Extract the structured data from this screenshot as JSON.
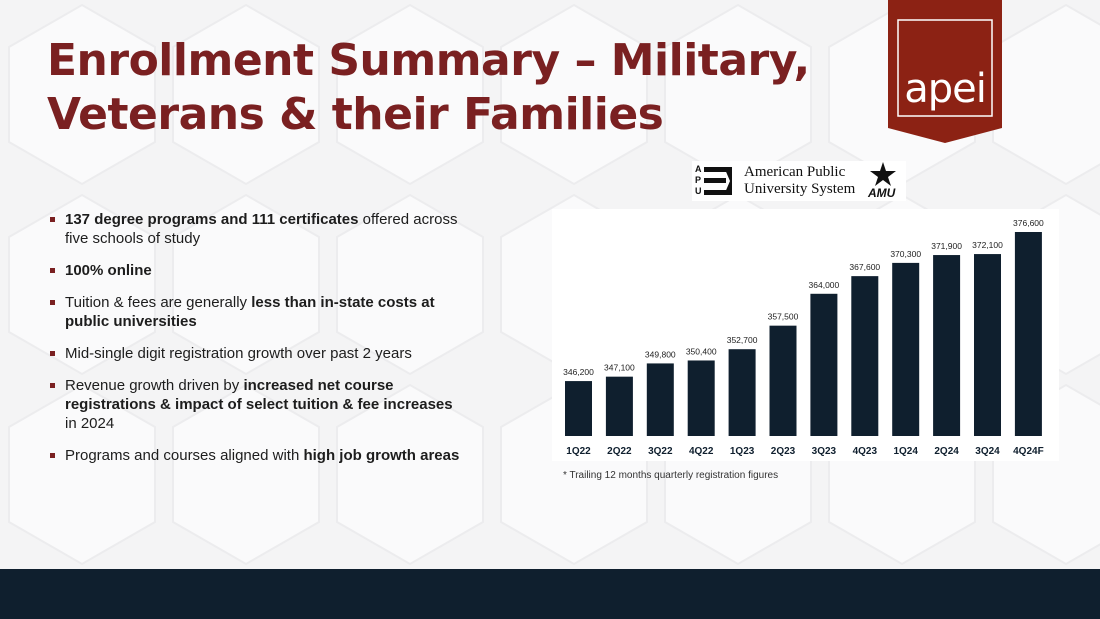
{
  "title": {
    "line1": "Enrollment Summary – Military,",
    "line2": "Veterans & their Families"
  },
  "logos": {
    "apei": "apei",
    "amu_letters": [
      "A",
      "P",
      "U"
    ],
    "amu_name_line1": "American Public",
    "amu_name_line2": "University System",
    "amu_abbr": "AMU"
  },
  "bullets": [
    {
      "bold": "137 degree programs and 111 certificates",
      "rest": " offered across five schools of study"
    },
    {
      "bold": "100% online",
      "rest": ""
    },
    {
      "pre": "Tuition & fees are generally ",
      "bold": "less than in-state costs at public universities"
    },
    {
      "pre": "Mid-single digit registration growth over past 2 years"
    },
    {
      "pre": "Revenue growth driven by ",
      "bold": "increased net course registrations & impact of select tuition & fee increases",
      "rest": " in 2024"
    },
    {
      "pre": "Programs and courses aligned with ",
      "bold": "high job growth areas"
    }
  ],
  "colors": {
    "brand": "#7a2021",
    "bar": "#0f1f2e",
    "footer": "#0f1f2e"
  },
  "chart_data": {
    "type": "bar",
    "title": "",
    "xlabel": "",
    "ylabel": "",
    "categories": [
      "1Q22",
      "2Q22",
      "3Q22",
      "4Q22",
      "1Q23",
      "2Q23",
      "3Q23",
      "4Q23",
      "1Q24",
      "2Q24",
      "3Q24",
      "4Q24F"
    ],
    "values": [
      346200,
      347100,
      349800,
      350400,
      352700,
      357500,
      364000,
      367600,
      370300,
      371900,
      372100,
      376600
    ],
    "data_labels": [
      "346,200",
      "347,100",
      "349,800",
      "350,400",
      "352,700",
      "357,500",
      "364,000",
      "367,600",
      "370,300",
      "371,900",
      "372,100",
      "376,600"
    ],
    "ylim": [
      335000,
      376600
    ],
    "grid": false,
    "legend": "none"
  },
  "footnote": "* Trailing 12 months quarterly registration figures"
}
